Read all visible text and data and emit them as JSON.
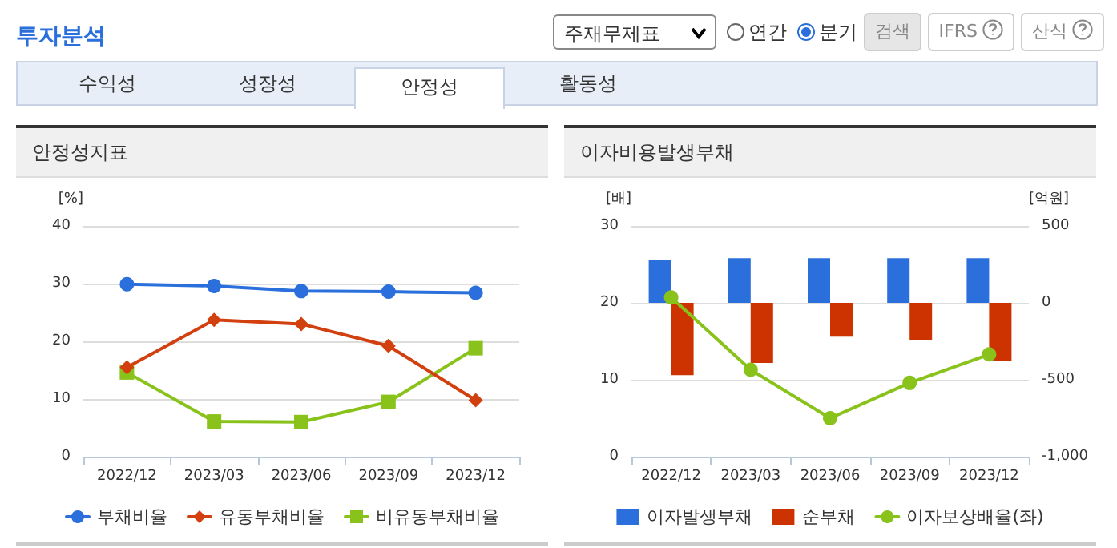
{
  "chart_data": [
    {
      "type": "other",
      "title": "투자분석",
      "annotations": [
        "주재무제표",
        "연간",
        "분기",
        "검색",
        "IFRS",
        "산식",
        "수익성",
        "성장성",
        "안정성",
        "활동성"
      ]
    },
    {
      "type": "line",
      "title": "안정성지표",
      "ylabel": "[%]",
      "categories": [
        "2022/12",
        "2023/03",
        "2023/06",
        "2023/09",
        "2023/12"
      ],
      "series": [
        {
          "name": "부채비율",
          "color": "#2a6fdb",
          "marker": "circle",
          "values": [
            29.9,
            29.6,
            28.7,
            28.6,
            28.4
          ]
        },
        {
          "name": "유동부채비율",
          "color": "#d2400f",
          "marker": "diamond",
          "values": [
            15.5,
            23.7,
            23.0,
            19.2,
            9.8
          ]
        },
        {
          "name": "비유동부채비율",
          "color": "#88c21a",
          "marker": "square",
          "values": [
            14.6,
            6.1,
            6.0,
            9.5,
            18.8
          ]
        }
      ],
      "ylim": [
        0,
        40
      ],
      "yticks": [
        0,
        10,
        20,
        30,
        40
      ],
      "grid": "y",
      "legend": "bottom"
    },
    {
      "type": "bar",
      "title": "이자비용발생부채",
      "ylabel": "[배]",
      "y2label": "[억원]",
      "categories": [
        "2022/12",
        "2023/03",
        "2023/06",
        "2023/09",
        "2023/12"
      ],
      "series": [
        {
          "name": "이자발생부채",
          "color": "#2a6fdb",
          "axis": "y2",
          "values": [
            280,
            290,
            290,
            290,
            290
          ]
        },
        {
          "name": "순부채",
          "color": "#cc3300",
          "axis": "y2",
          "values": [
            -470,
            -390,
            -220,
            -240,
            -380
          ]
        },
        {
          "name": "이자보상배율(좌)",
          "type": "line",
          "color": "#88c21a",
          "marker": "circle",
          "values": [
            20.7,
            11.3,
            5.0,
            9.6,
            13.3
          ]
        }
      ],
      "ylim": [
        0,
        30
      ],
      "yticks": [
        0,
        10,
        20,
        30
      ],
      "y2lim": [
        -1000,
        500
      ],
      "y2ticks": [
        {
          "value": -1000,
          "label": "-1,000"
        },
        -500,
        0,
        500
      ],
      "grid": "y",
      "legend": "bottom"
    }
  ]
}
